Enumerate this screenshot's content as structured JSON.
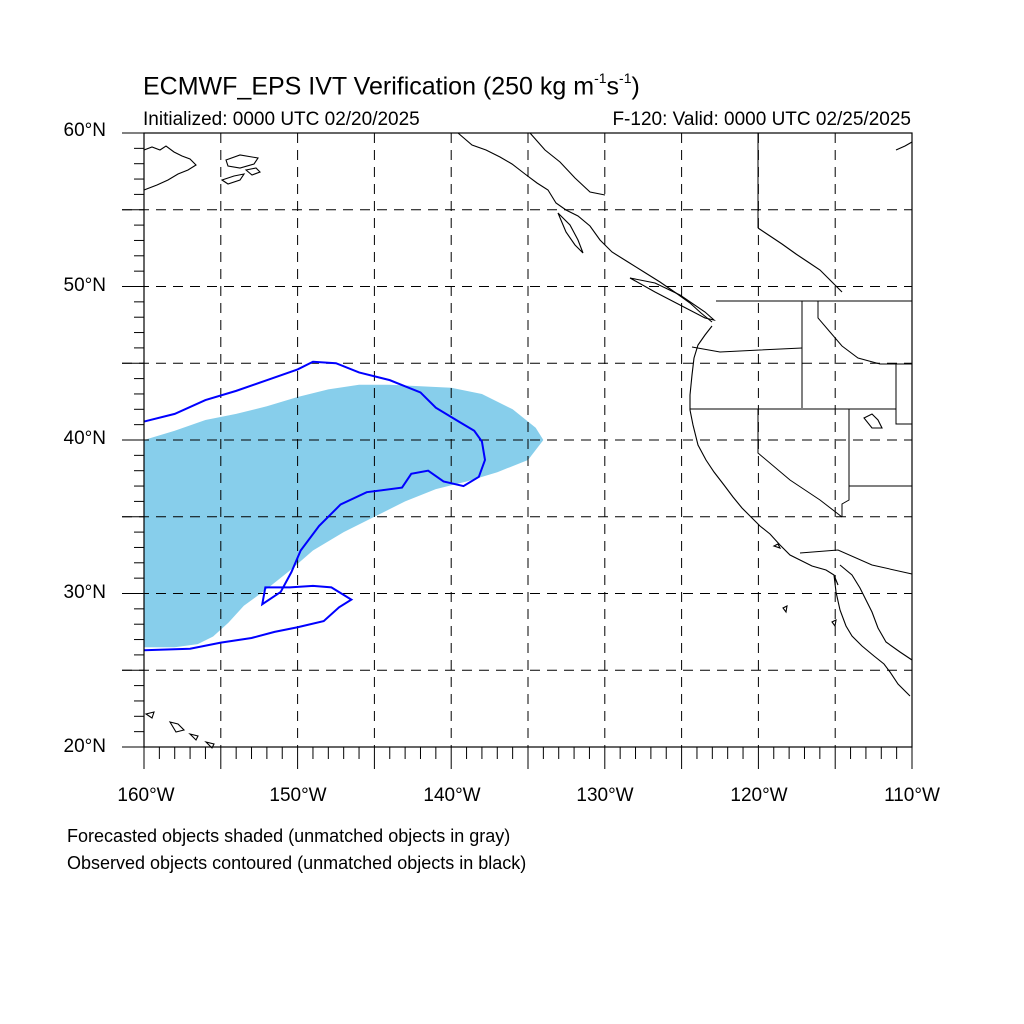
{
  "title": {
    "main_prefix": "ECMWF_EPS IVT Verification (250 kg m",
    "sup1": "-1",
    "main_mid": "s",
    "sup2": "-1",
    "main_suffix": ")"
  },
  "initialized": "Initialized: 0000 UTC 02/20/2025",
  "valid": "F-120: Valid: 0000 UTC 02/25/2025",
  "lat_labels": [
    "60°N",
    "50°N",
    "40°N",
    "30°N",
    "20°N"
  ],
  "lon_labels": [
    "160°W",
    "150°W",
    "140°W",
    "130°W",
    "120°W",
    "110°W"
  ],
  "notes": [
    "Forecasted objects shaded (unmatched objects in gray)",
    "Observed objects contoured (unmatched objects in black)"
  ],
  "colors": {
    "forecast_fill": "#87ceeb",
    "observed_contour": "#0000ff",
    "grid": "#000000",
    "coastline": "#000000"
  },
  "map_extent": {
    "lon_min": -160,
    "lon_max": -110,
    "lat_min": 20,
    "lat_max": 60
  },
  "forecast_object": {
    "name": "forecast-ivt-object",
    "points": [
      [
        -160,
        26.5
      ],
      [
        -160,
        40.0
      ],
      [
        -158,
        40.6
      ],
      [
        -156,
        41.3
      ],
      [
        -154,
        41.7
      ],
      [
        -152,
        42.2
      ],
      [
        -150,
        42.8
      ],
      [
        -148,
        43.3
      ],
      [
        -146,
        43.6
      ],
      [
        -144,
        43.6
      ],
      [
        -142,
        43.5
      ],
      [
        -140,
        43.4
      ],
      [
        -138,
        43.0
      ],
      [
        -136,
        42.0
      ],
      [
        -134.5,
        40.8
      ],
      [
        -134,
        40.0
      ],
      [
        -135,
        38.7
      ],
      [
        -137,
        37.9
      ],
      [
        -139,
        37.3
      ],
      [
        -141,
        36.8
      ],
      [
        -143,
        36.0
      ],
      [
        -145,
        35.0
      ],
      [
        -147,
        34.0
      ],
      [
        -149,
        32.8
      ],
      [
        -150.5,
        31.5
      ],
      [
        -152,
        30.3
      ],
      [
        -153.5,
        29.2
      ],
      [
        -154.5,
        28.1
      ],
      [
        -155.5,
        27.2
      ],
      [
        -156.5,
        26.7
      ],
      [
        -158,
        26.5
      ]
    ]
  },
  "observed_object": {
    "name": "observed-ivt-contour",
    "points": [
      [
        -160,
        41.2
      ],
      [
        -158,
        41.7
      ],
      [
        -156,
        42.6
      ],
      [
        -154,
        43.2
      ],
      [
        -152,
        43.9
      ],
      [
        -150,
        44.6
      ],
      [
        -149,
        45.1
      ],
      [
        -147.5,
        45.0
      ],
      [
        -146,
        44.4
      ],
      [
        -144,
        43.9
      ],
      [
        -142,
        43.1
      ],
      [
        -141,
        42.1
      ],
      [
        -139.5,
        41.2
      ],
      [
        -138.5,
        40.6
      ],
      [
        -138,
        39.9
      ],
      [
        -137.8,
        38.7
      ],
      [
        -138.2,
        37.6
      ],
      [
        -139.2,
        37.0
      ],
      [
        -140.5,
        37.3
      ],
      [
        -141.5,
        38.0
      ],
      [
        -142.6,
        37.8
      ],
      [
        -143.2,
        36.9
      ],
      [
        -145.5,
        36.6
      ],
      [
        -147.2,
        35.8
      ],
      [
        -148.6,
        34.4
      ],
      [
        -149.8,
        32.8
      ],
      [
        -150.4,
        31.4
      ],
      [
        -151.1,
        30.1
      ],
      [
        -152.3,
        29.3
      ],
      [
        -152.1,
        30.4
      ],
      [
        -150.5,
        30.4
      ],
      [
        -149.0,
        30.5
      ],
      [
        -147.8,
        30.4
      ],
      [
        -146.5,
        29.6
      ],
      [
        -147.3,
        29.1
      ],
      [
        -148.3,
        28.2
      ],
      [
        -150.0,
        27.8
      ],
      [
        -151.5,
        27.5
      ],
      [
        -153.0,
        27.1
      ],
      [
        -155.0,
        26.8
      ],
      [
        -157.0,
        26.4
      ],
      [
        -160,
        26.3
      ]
    ]
  }
}
